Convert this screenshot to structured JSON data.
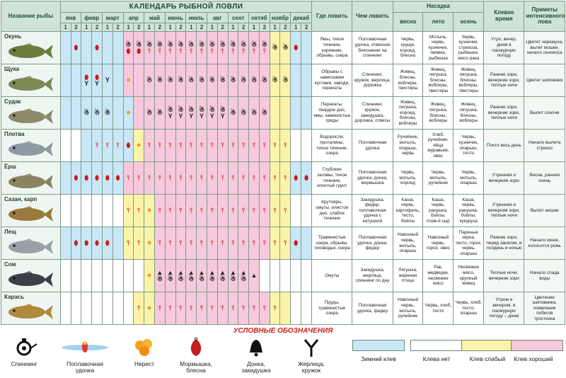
{
  "header": {
    "title": "КАЛЕНДАРЬ РЫБНОЙ ЛОВЛИ",
    "fish_col": "Название рыбы",
    "where_col": "Где ловить",
    "tackle_col": "Чем ловить",
    "bait_col": "Насадка",
    "time_col": "Клевое время",
    "signs_col": "Приметы интенсивного лова",
    "months": [
      "янв",
      "февр",
      "март",
      "апр",
      "май",
      "июнь",
      "июль",
      "авг",
      "сент",
      "октяб",
      "ноябр",
      "декаб"
    ],
    "halves": [
      "1",
      "2"
    ],
    "seasons": [
      "весна",
      "лето",
      "осень"
    ]
  },
  "rows": [
    {
      "name": "Окунь",
      "fish_icon": "perch-icon",
      "cells": [
        "W",
        "W",
        "W",
        "W",
        "W",
        "W",
        "G",
        "G",
        "G",
        "G",
        "G",
        "G",
        "G",
        "G",
        "G",
        "G",
        "G",
        "G",
        "G",
        "G",
        "S",
        "S",
        "W",
        "W"
      ],
      "gear": [
        "",
        "jig",
        "",
        "jig",
        "",
        "",
        "spin jig",
        "spin jig",
        "spin float",
        "spin float",
        "spin float",
        "spin float",
        "spin float",
        "spin float",
        "spin float",
        "spin float",
        "spin float",
        "spin float",
        "spin float",
        "spin float",
        "spin",
        "spin",
        "jig",
        ""
      ],
      "where": "Ямы, тихое течение, коряжник, обрывы, озера",
      "tackle": "Поплавочная удочка, отвесное блеснение на спиннинг",
      "spring": "Червь, хрущи, короед, блесна",
      "summer": "Мотыль, червь, кузнечик, пиявка, рыбешка",
      "autumn": "Червь, кузнечик, стрекоза, рыбешка, мясо рака",
      "time": "Утро, вечер, днем в пасмурную погоду",
      "signs": "Цветет черемуха, вылет мошки, начало сенокоса"
    },
    {
      "name": "Щука",
      "fish_icon": "pike-icon",
      "cells": [
        "W",
        "W",
        "W",
        "W",
        "W",
        "W",
        "G",
        "G",
        "G",
        "G",
        "G",
        "G",
        "G",
        "G",
        "G",
        "G",
        "G",
        "G",
        "G",
        "G",
        "S",
        "S",
        "W",
        "W"
      ],
      "gear": [
        "",
        "",
        "jig zher",
        "jig zher",
        "zher",
        "",
        "spawn",
        "",
        "spin",
        "spin",
        "spin",
        "spin",
        "spin",
        "spin",
        "spin",
        "spin",
        "spin",
        "spin",
        "spin",
        "spin",
        "spin",
        "spin",
        "",
        ""
      ],
      "where": "Обрывы с нависшими кустами, заводи, перекаты",
      "tackle": "Спиннинг, кружок, жерлица, дорожка",
      "spring": "Живец, блесны, воблеры, твистеры",
      "summer": "Живец, лягушка, блесны, воблеры, твистеры",
      "autumn": "Живец, лягушка, блесны, воблеры, твистеры",
      "time": "Ранние зори, вечерние зори, теплые ночи",
      "signs": "Цветет шиповник"
    },
    {
      "name": "Судак",
      "fish_icon": "zander-icon",
      "cells": [
        "W",
        "W",
        "W",
        "W",
        "W",
        "W",
        "W",
        "G",
        "G",
        "G",
        "G",
        "G",
        "G",
        "G",
        "G",
        "G",
        "G",
        "G",
        "G",
        "G",
        "S",
        "S",
        "W",
        "W"
      ],
      "gear": [
        "",
        "",
        "spin",
        "spin",
        "spin",
        "",
        "spawn",
        "",
        "spin",
        "spin",
        "spin zher",
        "spin zher",
        "spin zher",
        "spin zher",
        "spin zher",
        "spin zher",
        "spin",
        "spin",
        "spin",
        "spin",
        "",
        "",
        "",
        ""
      ],
      "where": "Перекаты, твердое дно, ямы, каменистые гряды",
      "tackle": "Спиннинг, кружок, закидушка, дорожка, отвесы",
      "spring": "Живец, лягушка, короед, блесны, воблеры",
      "summer": "Живец, лягушка, блесны, воблеры",
      "autumn": "Живец, лягушка, блесны, воблеры",
      "time": "Ранние зори, вечерние зори, теплые ночи",
      "signs": "Вылет слепня"
    },
    {
      "name": "Плотва",
      "fish_icon": "roach-icon",
      "cells": [
        "N",
        "N",
        "W",
        "W",
        "W",
        "W",
        "W",
        "S",
        "G",
        "G",
        "G",
        "G",
        "G",
        "G",
        "G",
        "G",
        "G",
        "G",
        "G",
        "G",
        "S",
        "S",
        "N",
        "N"
      ],
      "gear": [
        "",
        "",
        "",
        "float",
        "float",
        "float",
        "jig",
        "spawn",
        "float",
        "float",
        "float",
        "float",
        "float",
        "float",
        "float",
        "float",
        "float",
        "float",
        "float",
        "float",
        "float",
        "float",
        "",
        ""
      ],
      "where": "Водоросли, проталины, тихое течение, озера",
      "tackle": "Поплавочная удочка",
      "spring": "Ручейник, мотыль, опарыш, червь",
      "summer": "Хлеб, ручейник, яйца муравьев, овес",
      "autumn": "Червь, кузнечик, опарыш, тесто",
      "time": "Почти весь день",
      "signs": "Начало вылета стрекоз"
    },
    {
      "name": "Ёрш",
      "fish_icon": "ruffe-icon",
      "cells": [
        "W",
        "W",
        "W",
        "W",
        "W",
        "W",
        "G",
        "G",
        "G",
        "G",
        "G",
        "G",
        "G",
        "G",
        "G",
        "G",
        "G",
        "G",
        "G",
        "G",
        "S",
        "S",
        "W",
        "W"
      ],
      "gear": [
        "",
        "jig",
        "jig",
        "jig",
        "jig",
        "jig",
        "float",
        "float",
        "float",
        "float",
        "float",
        "float",
        "float",
        "float",
        "float",
        "float",
        "float",
        "float",
        "float",
        "float",
        "float",
        "float",
        "jig",
        "jig"
      ],
      "where": "Глубокие заливы, тихое течение, илистый грунт",
      "tackle": "Поплавочная удочка, донка, мормышка",
      "spring": "Червь, мотыль, короед",
      "summer": "Червь, мотыль, ручейник",
      "autumn": "Червь, мотыль, опарыш",
      "time": "Утренняя и вечерняя зори",
      "signs": "Весна, ранняя осень"
    },
    {
      "name": "Сазан, карп",
      "fish_icon": "carp-icon",
      "cells": [
        "N",
        "N",
        "N",
        "N",
        "N",
        "N",
        "S",
        "S",
        "S",
        "G",
        "G",
        "G",
        "G",
        "G",
        "G",
        "G",
        "G",
        "G",
        "G",
        "G",
        "S",
        "S",
        "N",
        "N"
      ],
      "gear": [
        "",
        "",
        "",
        "",
        "",
        "",
        "float",
        "float",
        "spawn",
        "float",
        "float",
        "float",
        "float",
        "float",
        "float",
        "float",
        "float",
        "float",
        "float",
        "float",
        "float",
        "float",
        "",
        ""
      ],
      "where": "Крутояры, омуты, илистое дно, слабое течение",
      "tackle": "Закидушка, фидер, поплавочная удочка с катушкой",
      "spring": "Каша, червь, картофель, тесто, бойлы",
      "summer": "Каша, червь, ракушка, бойлы, плав-й сыр",
      "autumn": "Каша, червь, ракушка, бойлы, кукуруза",
      "time": "Утренняя и вечерняя зори, теплые ночи",
      "signs": "Вылет мошки"
    },
    {
      "name": "Лещ",
      "fish_icon": "bream-icon",
      "cells": [
        "W",
        "W",
        "W",
        "W",
        "W",
        "W",
        "S",
        "S",
        "S",
        "G",
        "G",
        "G",
        "G",
        "G",
        "G",
        "G",
        "G",
        "G",
        "G",
        "G",
        "S",
        "S",
        "W",
        "W"
      ],
      "gear": [
        "",
        "jig",
        "jig",
        "jig",
        "jig",
        "",
        "float",
        "float",
        "spawn",
        "float",
        "float",
        "float",
        "float",
        "float",
        "float",
        "float",
        "float",
        "float",
        "float",
        "float",
        "float",
        "float",
        "jig",
        ""
      ],
      "where": "Травянистые озера, обрывы, тиховодье, озера",
      "tackle": "Поплавочная удочка, донка, фидер",
      "spring": "Навозный червь, мотыль, опарыш",
      "summer": "Навозный червь, горох, овес",
      "autumn": "Пареные зерна, тесто, горох, червь, опарыш",
      "time": "Ранние зори, перед закатом, в полдень и ночью",
      "signs": "Начало июня, колосится рожь"
    },
    {
      "name": "Сом",
      "fish_icon": "catfish-icon",
      "cells": [
        "N",
        "N",
        "N",
        "N",
        "N",
        "N",
        "N",
        "N",
        "S",
        "G",
        "G",
        "G",
        "G",
        "G",
        "G",
        "G",
        "G",
        "G",
        "G",
        "N",
        "N",
        "N",
        "N",
        "N"
      ],
      "gear": [
        "",
        "",
        "",
        "",
        "",
        "",
        "",
        "",
        "spawn",
        "bell spin",
        "bell spin",
        "bell spin",
        "bell spin",
        "bell spin",
        "bell spin",
        "bell spin",
        "bell spin",
        "bell spin",
        "bell",
        "",
        "",
        "",
        "",
        ""
      ],
      "where": "Омуты",
      "tackle": "Закидушка, жерлица, спиннинг по дну",
      "spring": "Лягушка, жареная птица",
      "summer": "Рак, медведки, несвежее мясо",
      "autumn": "Несвежее мясо, крупный живец",
      "time": "Теплые ночи, вечерние зори",
      "signs": "Начало спада воды"
    },
    {
      "name": "Карась",
      "fish_icon": "crucian-icon",
      "cells": [
        "N",
        "N",
        "N",
        "N",
        "N",
        "N",
        "N",
        "S",
        "S",
        "G",
        "G",
        "G",
        "G",
        "G",
        "G",
        "G",
        "G",
        "G",
        "G",
        "G",
        "S",
        "S",
        "N",
        "N"
      ],
      "gear": [
        "",
        "",
        "",
        "",
        "",
        "",
        "",
        "float",
        "spawn",
        "float",
        "float",
        "float",
        "float",
        "float",
        "float",
        "float",
        "float",
        "float",
        "float",
        "float",
        "float",
        "",
        "",
        ""
      ],
      "where": "Пруды, травянистые озера",
      "tackle": "Поплавочная удочка, фидер",
      "spring": "Навозный червь, мотыль, ручейник",
      "summer": "Червь, хлеб, тесто",
      "autumn": "Червь, хлеб, тесто, опарыш",
      "time": "Утром и вечером, в пасмурную погоду – днем",
      "signs": "Цветение шиповника, появление побегов тростника"
    }
  ],
  "legend": {
    "title": "УСЛОВНЫЕ ОБОЗНАЧЕНИЯ",
    "icons": [
      {
        "icon": "spinning-reel-icon",
        "label": "Спиннинг"
      },
      {
        "icon": "float-rod-icon",
        "label": "Поплавочная удочка"
      },
      {
        "icon": "spawn-icon",
        "label": "Нерест"
      },
      {
        "icon": "jig-lure-icon",
        "label": "Мормышка, блесна"
      },
      {
        "icon": "bell-icon",
        "label": "Донка, закидушка"
      },
      {
        "icon": "zherlitsa-icon",
        "label": "Жерлица, кружок"
      }
    ],
    "swatches": [
      {
        "label": "Зимний клев",
        "color": "#c9e7f6"
      },
      {
        "label": "Клева нет",
        "color": "#ffffff"
      },
      {
        "label": "Клев слабый",
        "color": "#fbf4a8"
      },
      {
        "label": "Клев хороший",
        "color": "#f6c9dc"
      }
    ]
  },
  "colors": {
    "winter": "#c9e7f6",
    "none": "#ffffff",
    "weak": "#fbf4a8",
    "good": "#f6c9dc",
    "header": "#cfe3d6",
    "legend_title": "#d01e1e"
  }
}
